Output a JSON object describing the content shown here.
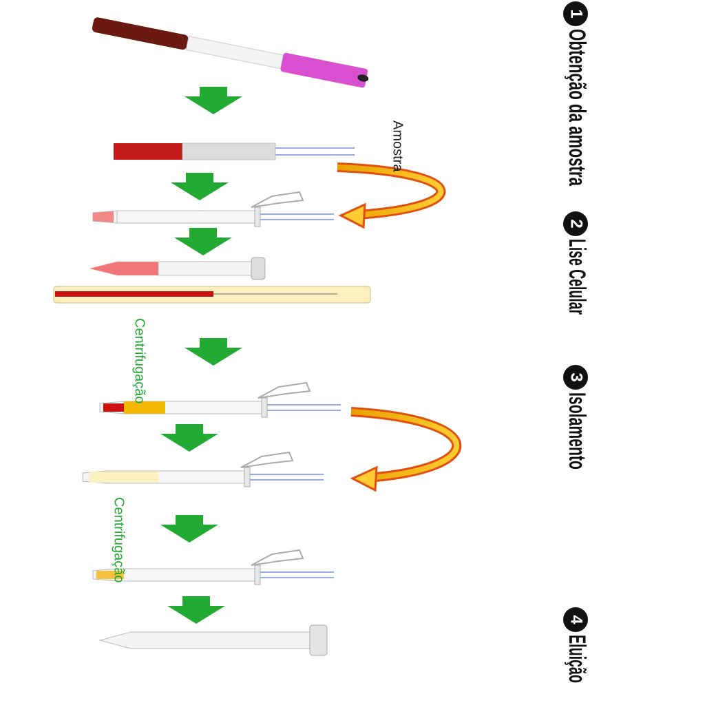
{
  "steps": [
    {
      "number": "1",
      "label": "Obtenção da amostra"
    },
    {
      "number": "2",
      "label": "Lise Celular"
    },
    {
      "number": "3",
      "label": "Isolamento"
    },
    {
      "number": "4",
      "label": "Eluição"
    }
  ],
  "annotations": {
    "sample": "Amostra",
    "centrifugation": [
      "Centrifugação",
      "Centrifugação"
    ]
  }
}
